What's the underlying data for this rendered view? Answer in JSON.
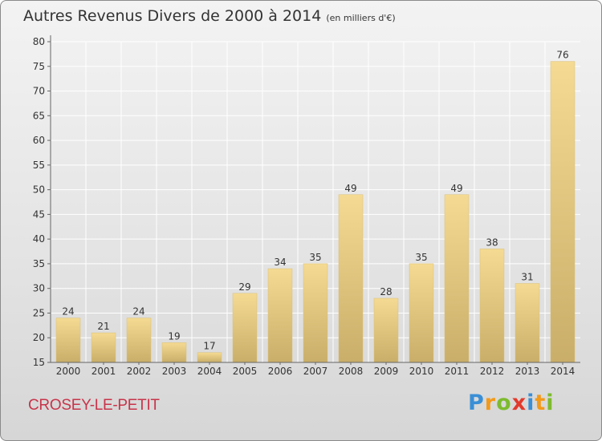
{
  "chart_data": {
    "type": "bar",
    "title": "Autres Revenus Divers de 2000 à 2014",
    "subtitle": "(en milliers d'€)",
    "categories": [
      "2000",
      "2001",
      "2002",
      "2003",
      "2004",
      "2005",
      "2006",
      "2007",
      "2008",
      "2009",
      "2010",
      "2011",
      "2012",
      "2013",
      "2014"
    ],
    "values": [
      24,
      21,
      24,
      19,
      17,
      29,
      34,
      35,
      49,
      28,
      35,
      49,
      38,
      31,
      76
    ],
    "ylim": [
      15,
      80
    ],
    "yticks": [
      15,
      20,
      25,
      30,
      35,
      40,
      45,
      50,
      55,
      60,
      65,
      70,
      75,
      80
    ],
    "grid": true,
    "bar_color": "#e6c77a",
    "xlabel": "",
    "ylabel": ""
  },
  "footer": {
    "commune": "CROSEY-LE-PETIT",
    "logo_letters": [
      {
        "ch": "P",
        "color": "#3a8fd6"
      },
      {
        "ch": "r",
        "color": "#f29a1a"
      },
      {
        "ch": "o",
        "color": "#7dbb2e"
      },
      {
        "ch": "x",
        "color": "#e23a2c"
      },
      {
        "ch": "i",
        "color": "#3a8fd6"
      },
      {
        "ch": "t",
        "color": "#f29a1a"
      },
      {
        "ch": "i",
        "color": "#7dbb2e"
      }
    ]
  }
}
